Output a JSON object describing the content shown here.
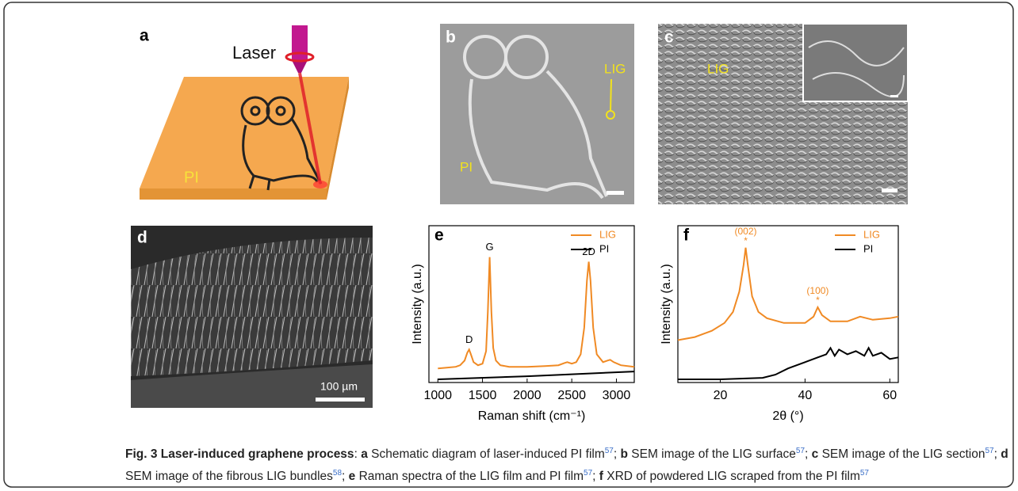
{
  "panels": {
    "a": {
      "label": "a",
      "laser": "Laser",
      "substrate": "PI"
    },
    "b": {
      "label": "b",
      "pattern": "LIG",
      "substrate": "PI"
    },
    "c": {
      "label": "c",
      "pattern": "LIG"
    },
    "d": {
      "label": "d",
      "scale_bar": "100 µm"
    }
  },
  "chart_data": [
    {
      "type": "line",
      "panel": "e",
      "xlabel": "Raman shift (cm⁻¹)",
      "ylabel": "Intensity (a.u.)",
      "xlim": [
        900,
        3200
      ],
      "ylim": [
        0,
        1
      ],
      "xticks": [
        1000,
        1500,
        2000,
        2500,
        3000
      ],
      "legend": "upper right",
      "series": [
        {
          "name": "LIG",
          "color": "#f08a24",
          "x": [
            1000,
            1100,
            1200,
            1250,
            1300,
            1330,
            1350,
            1370,
            1400,
            1450,
            1500,
            1540,
            1560,
            1580,
            1600,
            1620,
            1650,
            1700,
            1800,
            2000,
            2200,
            2350,
            2420,
            2450,
            2500,
            2550,
            2600,
            2640,
            2670,
            2690,
            2710,
            2740,
            2780,
            2850,
            2900,
            2930,
            2970,
            3050,
            3200
          ],
          "values": [
            0.09,
            0.095,
            0.1,
            0.11,
            0.14,
            0.19,
            0.21,
            0.18,
            0.13,
            0.11,
            0.12,
            0.2,
            0.45,
            0.8,
            0.45,
            0.22,
            0.14,
            0.11,
            0.1,
            0.1,
            0.105,
            0.11,
            0.125,
            0.13,
            0.12,
            0.13,
            0.18,
            0.35,
            0.65,
            0.77,
            0.65,
            0.35,
            0.18,
            0.13,
            0.14,
            0.145,
            0.13,
            0.11,
            0.1
          ]
        },
        {
          "name": "PI",
          "color": "#000000",
          "x": [
            1000,
            2000,
            3200
          ],
          "values": [
            0.02,
            0.04,
            0.07
          ]
        }
      ],
      "annotations": [
        {
          "text": "D",
          "x": 1350,
          "color": "#000000"
        },
        {
          "text": "G",
          "x": 1580,
          "color": "#000000"
        },
        {
          "text": "2D",
          "x": 2690,
          "color": "#000000"
        }
      ]
    },
    {
      "type": "line",
      "panel": "f",
      "xlabel": "2θ (°)",
      "ylabel": "Intensity (a.u.)",
      "xlim": [
        10,
        62
      ],
      "ylim": [
        0,
        1
      ],
      "xticks": [
        20,
        40,
        60
      ],
      "legend": "upper right",
      "series": [
        {
          "name": "LIG",
          "color": "#f08a24",
          "x": [
            10,
            14,
            18,
            21,
            23,
            24.5,
            25.5,
            26,
            26.5,
            27.5,
            29,
            31,
            35,
            40,
            42,
            43,
            44,
            46,
            50,
            53,
            56,
            60,
            62
          ],
          "values": [
            0.27,
            0.29,
            0.33,
            0.38,
            0.45,
            0.58,
            0.75,
            0.86,
            0.75,
            0.55,
            0.45,
            0.41,
            0.38,
            0.38,
            0.42,
            0.48,
            0.43,
            0.39,
            0.39,
            0.42,
            0.4,
            0.41,
            0.42
          ]
        },
        {
          "name": "PI",
          "color": "#000000",
          "x": [
            10,
            20,
            30,
            33,
            36,
            40,
            43,
            45,
            46,
            47,
            48,
            50,
            52,
            54,
            55,
            56,
            58,
            60,
            62
          ],
          "values": [
            0.02,
            0.02,
            0.03,
            0.05,
            0.09,
            0.13,
            0.16,
            0.18,
            0.22,
            0.17,
            0.21,
            0.18,
            0.2,
            0.17,
            0.22,
            0.17,
            0.19,
            0.15,
            0.16
          ]
        }
      ],
      "annotations": [
        {
          "text": "(002)",
          "marker": "*",
          "x": 26,
          "color": "#f08a24"
        },
        {
          "text": "(100)",
          "marker": "*",
          "x": 43,
          "color": "#f08a24"
        }
      ]
    }
  ],
  "caption": {
    "title": "Fig. 3 Laser-induced graphene process",
    "title_sep": ":",
    "items": [
      {
        "letter": "a",
        "text": " Schematic diagram of laser-induced PI film",
        "ref": "57",
        "sep": "; "
      },
      {
        "letter": "b",
        "text": " SEM image of the LIG surface",
        "ref": "57",
        "sep": "; "
      },
      {
        "letter": "c",
        "text": " SEM image of the LIG section",
        "ref": "57",
        "sep": "; "
      },
      {
        "letter": "d",
        "text": " SEM image of the fibrous LIG bundles",
        "ref": "58",
        "sep": "; "
      },
      {
        "letter": "e",
        "text": " Raman spectra of the LIG film and PI film",
        "ref": "57",
        "sep": "; "
      },
      {
        "letter": "f",
        "text": " XRD of powdered LIG scraped from the PI film",
        "ref": "57"
      }
    ]
  }
}
